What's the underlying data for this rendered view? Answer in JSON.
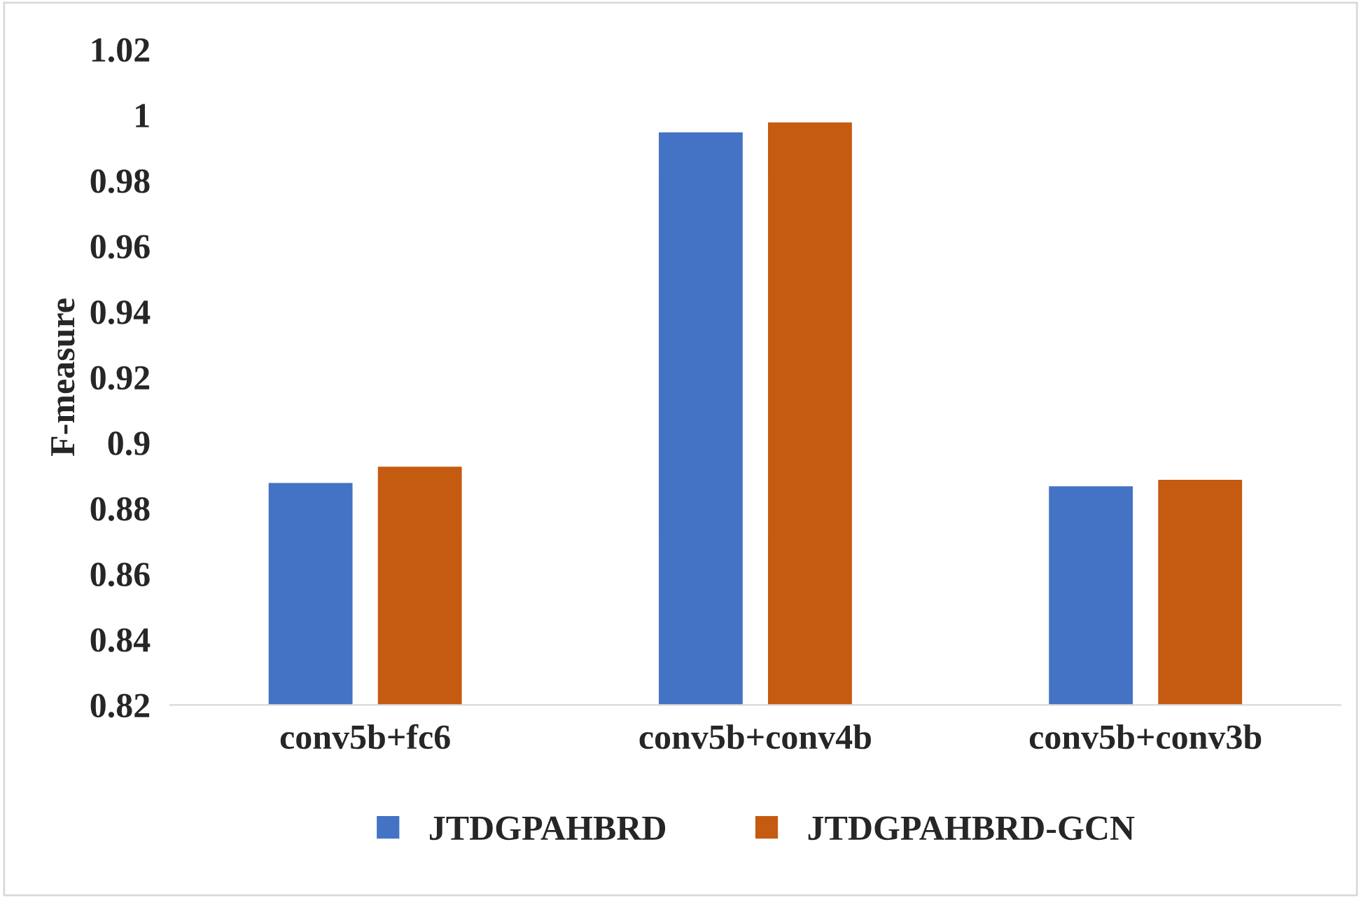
{
  "chart_data": {
    "type": "bar",
    "ylabel": "F-measure",
    "categories": [
      "conv5b+fc6",
      "conv5b+conv4b",
      "conv5b+conv3b"
    ],
    "series": [
      {
        "name": "JTDGPAHBRD",
        "color": "#4472c4",
        "values": [
          0.888,
          0.995,
          0.887
        ]
      },
      {
        "name": "JTDGPAHBRD-GCN",
        "color": "#c55a11",
        "values": [
          0.893,
          0.998,
          0.889
        ]
      }
    ],
    "ylim": [
      0.82,
      1.02
    ],
    "yticks": [
      0.82,
      0.84,
      0.86,
      0.88,
      0.9,
      0.92,
      0.94,
      0.96,
      0.98,
      1,
      1.02
    ],
    "grid": false,
    "legend": "bottom"
  }
}
